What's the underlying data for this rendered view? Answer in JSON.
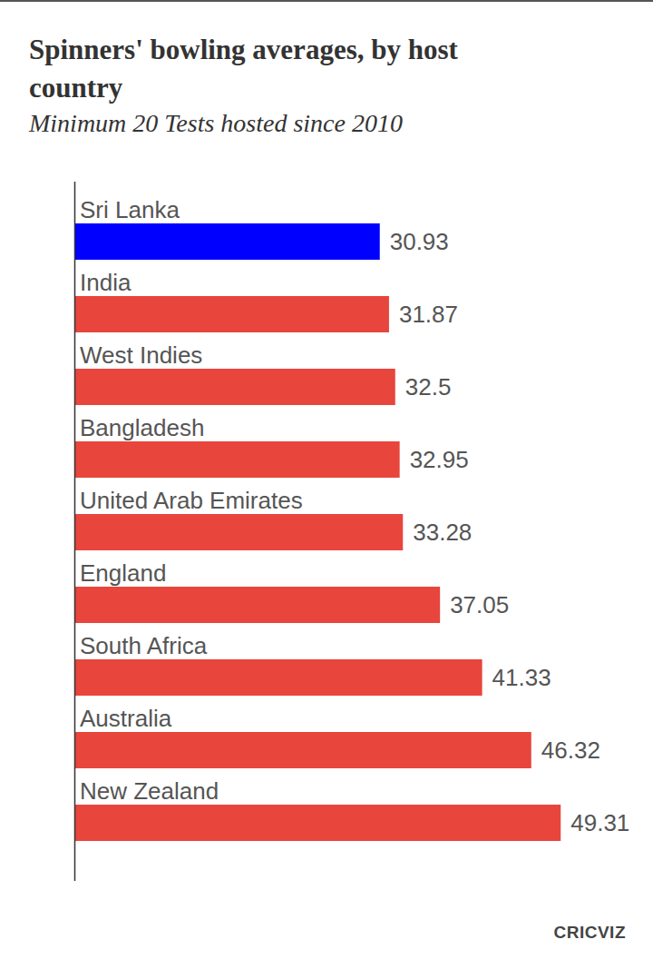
{
  "chart_data": {
    "type": "bar",
    "orientation": "horizontal",
    "title": "Spinners' bowling averages, by host country",
    "subtitle": "Minimum 20 Tests hosted since 2010",
    "source": "CRICVIZ",
    "categories": [
      "Sri Lanka",
      "India",
      "West Indies",
      "Bangladesh",
      "United Arab Emirates",
      "England",
      "South Africa",
      "Australia",
      "New Zealand"
    ],
    "values": [
      30.93,
      31.87,
      32.5,
      32.95,
      33.28,
      37.05,
      41.33,
      46.32,
      49.31
    ],
    "colors": [
      "#0000ff",
      "#e8453c",
      "#e8453c",
      "#e8453c",
      "#e8453c",
      "#e8453c",
      "#e8453c",
      "#e8453c",
      "#e8453c"
    ],
    "xlim": [
      0,
      55
    ],
    "grid": false,
    "data_labels": true,
    "tick_labels": false
  }
}
